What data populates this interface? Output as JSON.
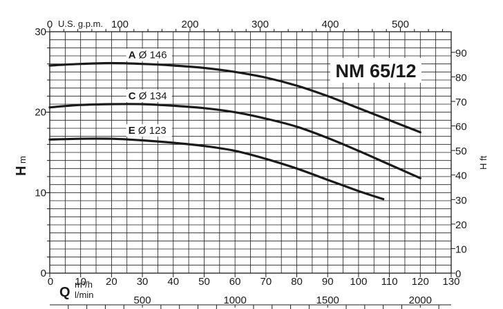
{
  "chart_data": {
    "type": "line",
    "title": "NM 65/12",
    "x_bottom": {
      "letter": "Q",
      "unit_top": "m³/h",
      "unit_bottom": "l/min",
      "range": [
        0,
        130
      ],
      "ticks": [
        0,
        10,
        20,
        30,
        40,
        50,
        60,
        70,
        80,
        90,
        100,
        110,
        120,
        130
      ]
    },
    "x_lmin": {
      "range": [
        0,
        2166.67
      ],
      "ticks": [
        0,
        500,
        1000,
        1500,
        2000
      ]
    },
    "x_top": {
      "unit": "U.S. g.p.m.",
      "range": [
        0,
        572.4
      ],
      "ticks": [
        0,
        100,
        200,
        300,
        400,
        500
      ]
    },
    "y_left": {
      "letter": "H",
      "unit": "m",
      "range": [
        0,
        30
      ],
      "ticks": [
        0,
        10,
        20,
        30
      ]
    },
    "y_right": {
      "label": "H ft",
      "range": [
        0,
        98.4
      ],
      "ticks": [
        0,
        10,
        20,
        30,
        40,
        50,
        60,
        70,
        80,
        90
      ]
    },
    "grid": true,
    "series": [
      {
        "letter": "A",
        "name": "Ø 146",
        "x": [
          0,
          10,
          20,
          30,
          40,
          50,
          60,
          70,
          80,
          90,
          100,
          110,
          120
        ],
        "y": [
          25.8,
          26.0,
          26.1,
          26.0,
          25.8,
          25.5,
          25.0,
          24.3,
          23.3,
          22.0,
          20.5,
          19.0,
          17.5
        ]
      },
      {
        "letter": "C",
        "name": "Ø 134",
        "x": [
          0,
          10,
          20,
          30,
          40,
          50,
          60,
          70,
          80,
          90,
          100,
          110,
          120
        ],
        "y": [
          20.6,
          20.9,
          21.0,
          21.0,
          20.8,
          20.5,
          20.0,
          19.2,
          18.2,
          16.8,
          15.2,
          13.5,
          11.8
        ]
      },
      {
        "letter": "E",
        "name": "Ø 123",
        "x": [
          0,
          10,
          20,
          30,
          40,
          50,
          60,
          70,
          80,
          90,
          100,
          108
        ],
        "y": [
          16.6,
          16.7,
          16.7,
          16.5,
          16.2,
          15.8,
          15.2,
          14.2,
          13.0,
          11.6,
          10.2,
          9.2
        ]
      }
    ]
  }
}
